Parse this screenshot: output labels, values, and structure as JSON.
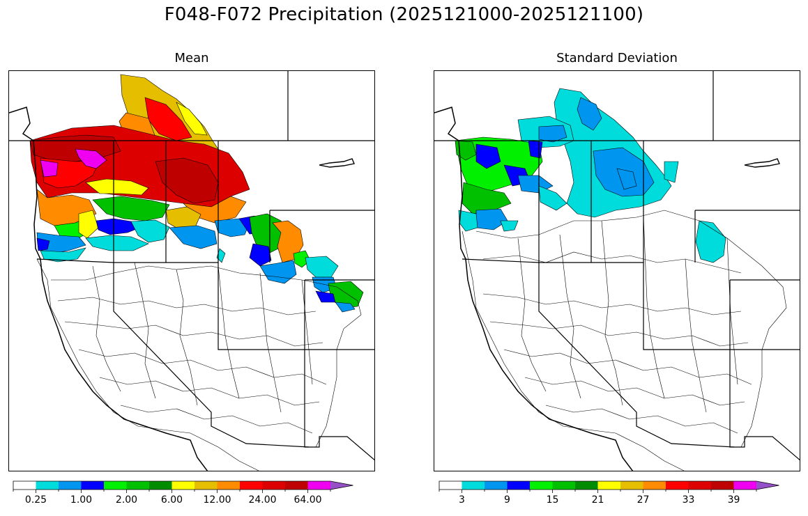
{
  "figure": {
    "title": "F048-F072 Precipitation (2025121000-2025121100)"
  },
  "panels": [
    {
      "title": "Mean",
      "colorbar": {
        "colors": [
          "#ffffff",
          "#00dcdc",
          "#0096f0",
          "#0000ff",
          "#00f000",
          "#00c000",
          "#008c00",
          "#ffff00",
          "#e6be00",
          "#ff8c00",
          "#ff0000",
          "#dc0000",
          "#be0000",
          "#f000f0",
          "#9650c8"
        ],
        "tick_labels": [
          "0.25",
          "1.00",
          "2.00",
          "6.00",
          "12.00",
          "24.00",
          "64.00"
        ],
        "extend": "max"
      }
    },
    {
      "title": "Standard Deviation",
      "colorbar": {
        "colors": [
          "#ffffff",
          "#00dcdc",
          "#0096f0",
          "#0000ff",
          "#00f000",
          "#00c000",
          "#008c00",
          "#ffff00",
          "#e6be00",
          "#ff8c00",
          "#ff0000",
          "#dc0000",
          "#be0000",
          "#f000f0",
          "#9650c8"
        ],
        "tick_labels": [
          "3",
          "9",
          "15",
          "21",
          "27",
          "33",
          "39"
        ],
        "extend": "max"
      }
    }
  ]
}
